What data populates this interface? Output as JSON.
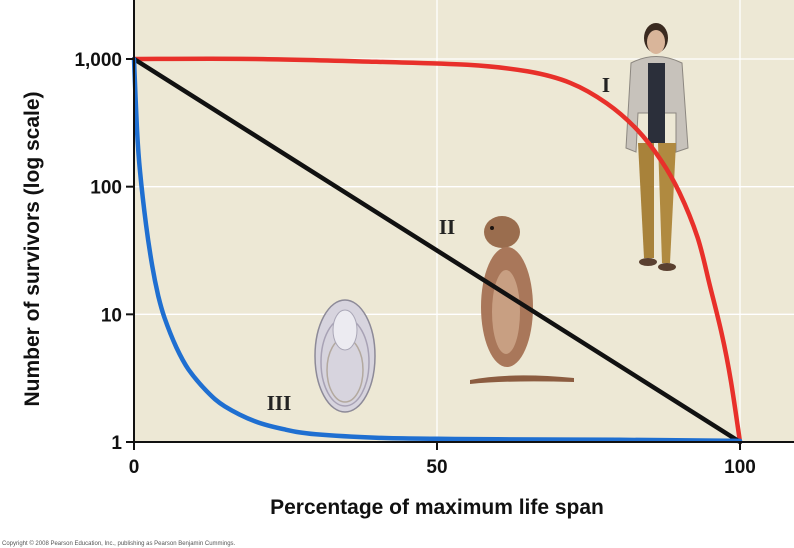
{
  "chart_data": {
    "type": "line",
    "title": "",
    "xlabel": "Percentage of maximum life span",
    "ylabel": "Number of survivors (log scale)",
    "y_scale": "log",
    "xlim": [
      0,
      100
    ],
    "ylim": [
      1,
      1000
    ],
    "x_ticks": [
      0,
      50,
      100
    ],
    "x_tick_labels": [
      "0",
      "50",
      "100"
    ],
    "y_ticks": [
      1,
      10,
      100,
      1000
    ],
    "y_tick_labels": [
      "1",
      "10",
      "100",
      "1,000"
    ],
    "grid": true,
    "background_color": "#ede8d5",
    "series": [
      {
        "name": "I",
        "color": "#e8302a",
        "x": [
          0,
          20,
          40,
          55,
          65,
          72,
          78,
          83,
          87,
          90,
          93,
          95,
          97,
          98.5,
          100
        ],
        "y": [
          1000,
          1000,
          950,
          900,
          800,
          650,
          450,
          280,
          160,
          90,
          40,
          17,
          7,
          3,
          1
        ]
      },
      {
        "name": "II",
        "color": "#111111",
        "x": [
          0,
          100
        ],
        "y": [
          1000,
          1
        ]
      },
      {
        "name": "III",
        "color": "#1f6fd1",
        "x": [
          0,
          0.5,
          1,
          2,
          3,
          4,
          5,
          7,
          9,
          12,
          15,
          20,
          25,
          30,
          40,
          50,
          60,
          80,
          100
        ],
        "y": [
          1000,
          280,
          130,
          50,
          24,
          14,
          9.5,
          5.5,
          3.7,
          2.5,
          1.9,
          1.45,
          1.25,
          1.15,
          1.08,
          1.06,
          1.05,
          1.04,
          1.02
        ]
      }
    ]
  },
  "copyright": "Copyright © 2008 Pearson Education, Inc., publishing as Pearson Benjamin Cummings."
}
